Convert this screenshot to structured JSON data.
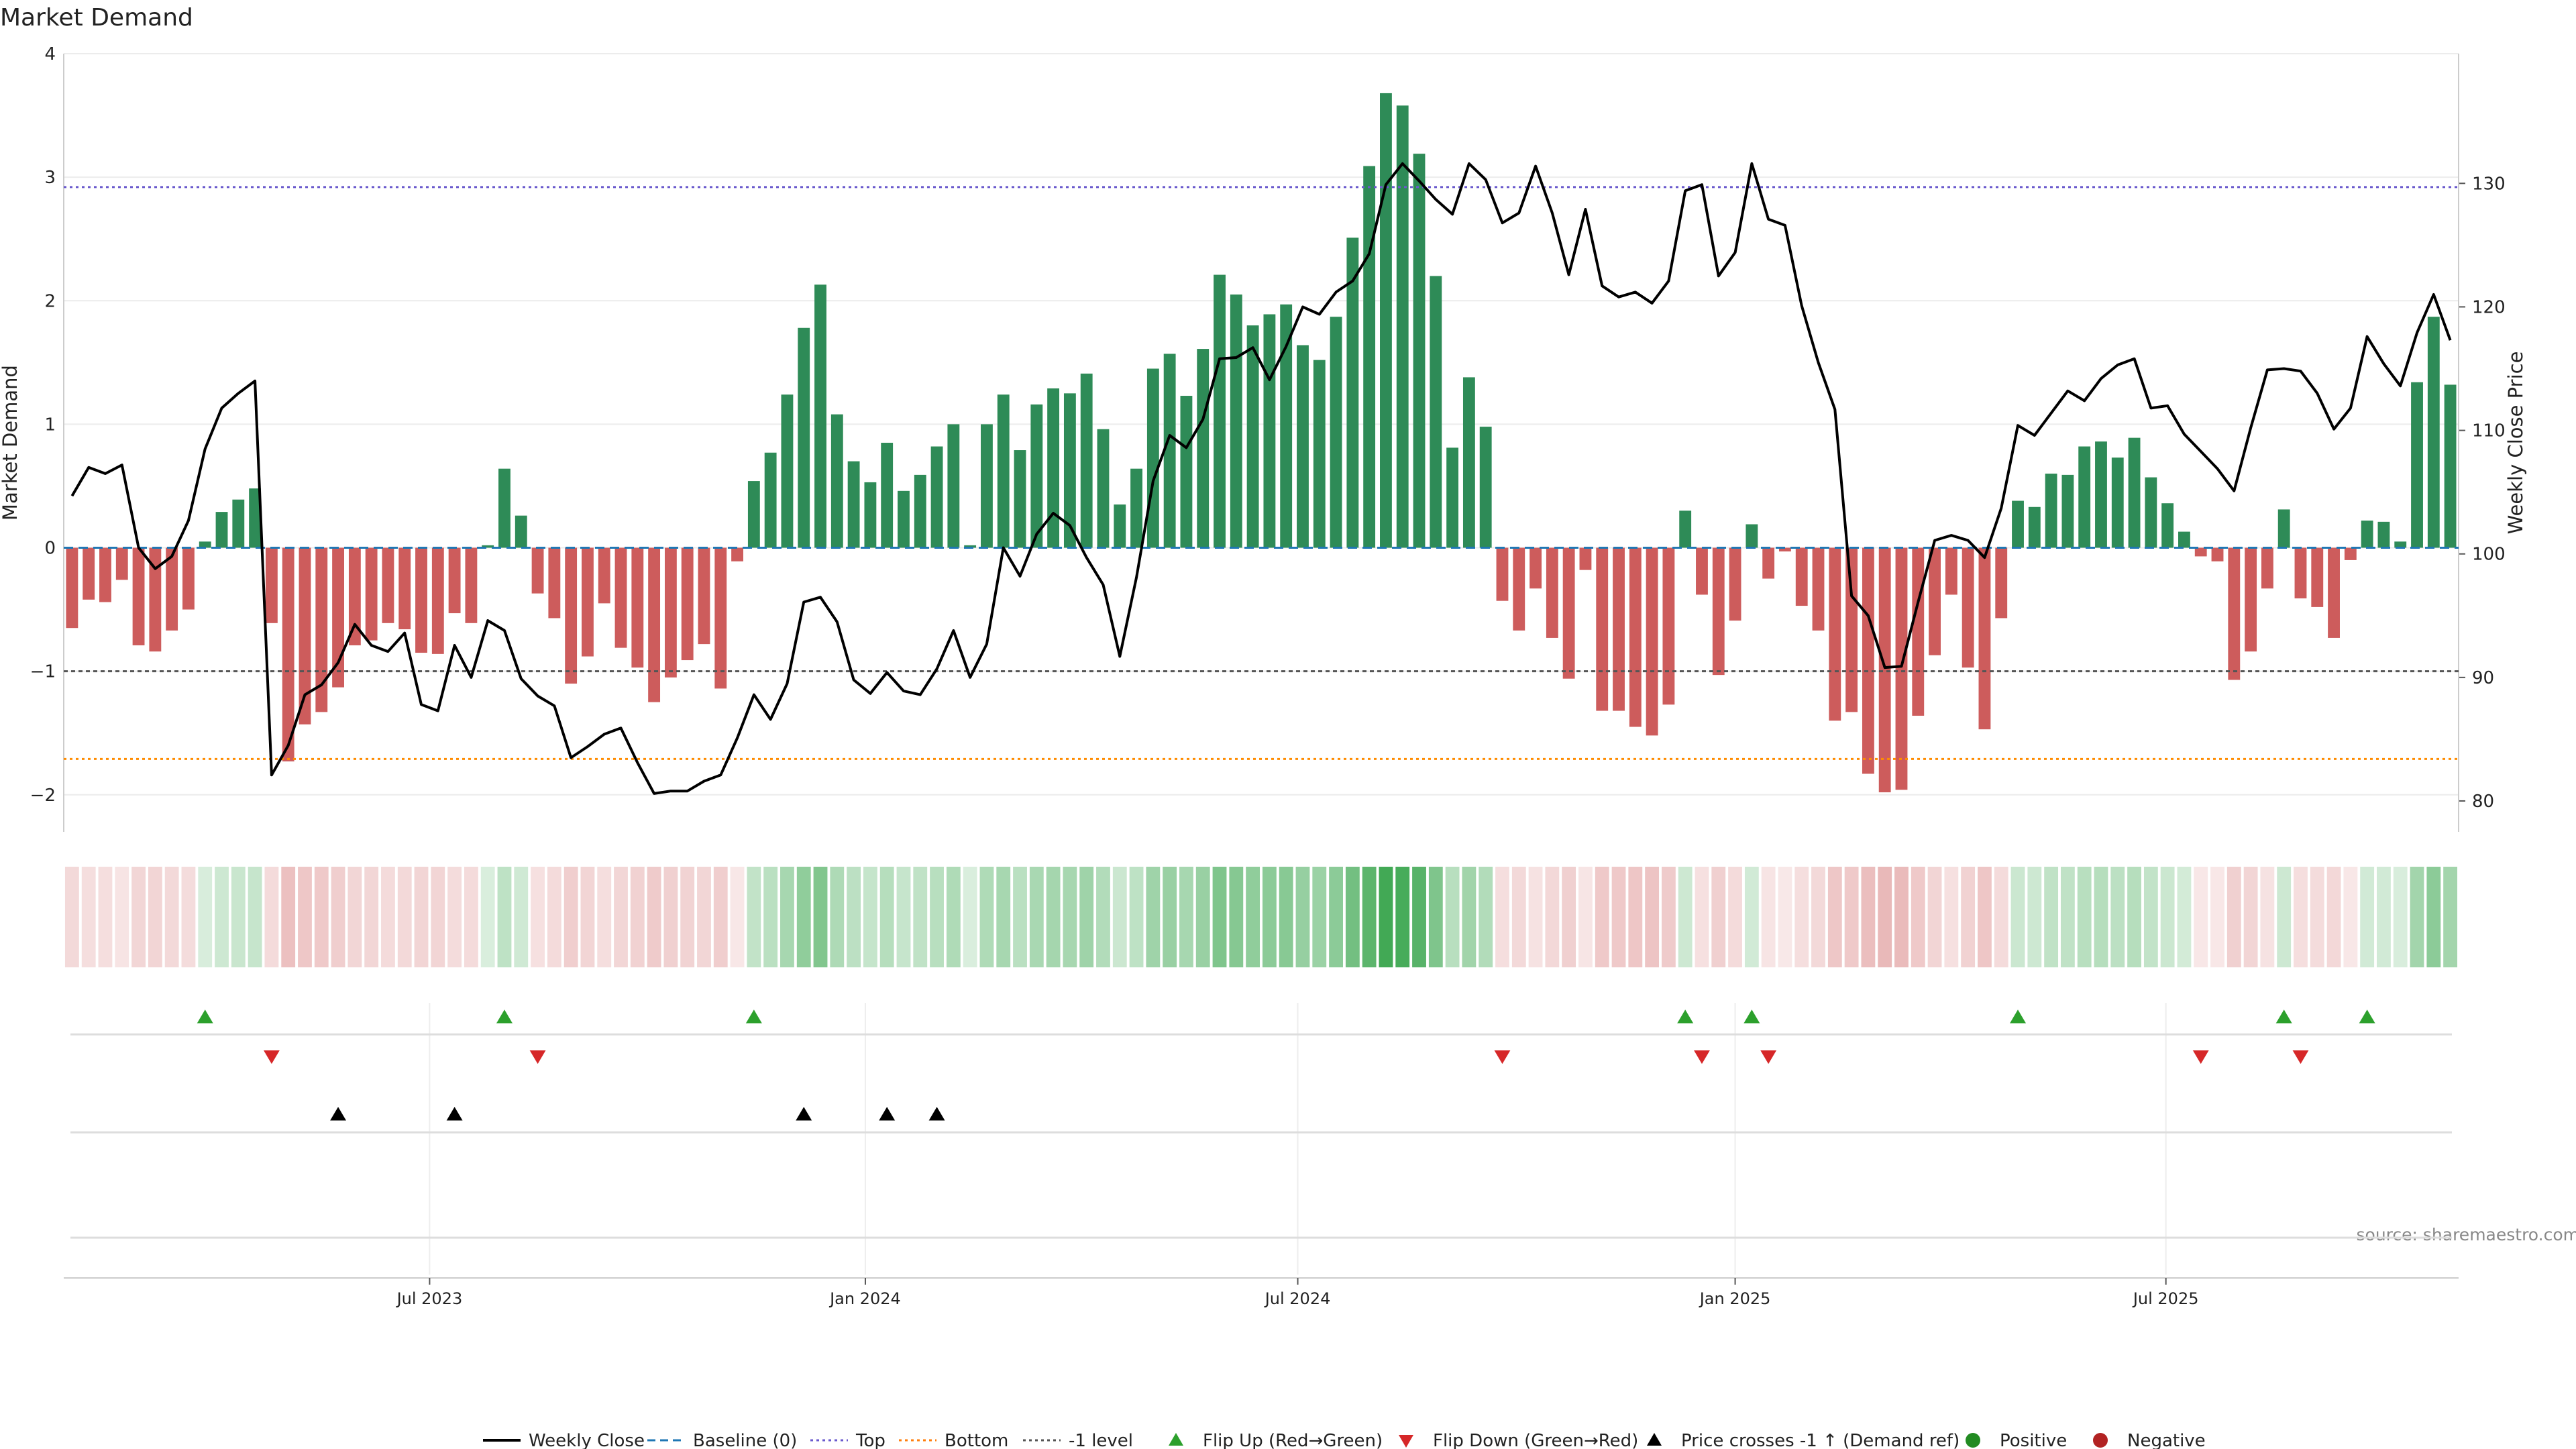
{
  "chart_data": {
    "type": "bar",
    "title": "Market Demand",
    "ylabel_left": "Market Demand",
    "ylabel_right": "Weekly Close Price",
    "source": "source: sharemaestro.com",
    "ylim_left": [
      -2.3,
      4.0
    ],
    "ylim_right": [
      77.5,
      140.5
    ],
    "yticks_left": [
      -2,
      -1,
      0,
      1,
      2,
      3,
      4
    ],
    "yticks_right": [
      80,
      90,
      100,
      110,
      120,
      130
    ],
    "x_tick_labels": [
      {
        "label": "Jul 2023",
        "week": 21.5
      },
      {
        "label": "Jan 2024",
        "week": 47.7
      },
      {
        "label": "Jul 2024",
        "week": 73.7
      },
      {
        "label": "Jan 2025",
        "week": 100
      },
      {
        "label": "Jul 2025",
        "week": 125.9
      }
    ],
    "x_range": [
      -0.5,
      143.5
    ],
    "reference_lines": {
      "baseline": 0,
      "top": 2.92,
      "bottom": -1.71,
      "minus_one": -1
    },
    "market_demand": [
      -0.65,
      -0.42,
      -0.44,
      -0.26,
      -0.79,
      -0.84,
      -0.67,
      -0.5,
      0.05,
      0.29,
      0.39,
      0.48,
      -0.61,
      -1.73,
      -1.43,
      -1.33,
      -1.13,
      -0.79,
      -0.75,
      -0.61,
      -0.66,
      -0.85,
      -0.86,
      -0.53,
      -0.61,
      0.02,
      0.64,
      0.26,
      -0.37,
      -0.57,
      -1.1,
      -0.88,
      -0.45,
      -0.81,
      -0.97,
      -1.25,
      -1.05,
      -0.91,
      -0.78,
      -1.14,
      -0.11,
      0.54,
      0.77,
      1.24,
      1.78,
      2.13,
      1.08,
      0.7,
      0.53,
      0.85,
      0.46,
      0.59,
      0.82,
      1.0,
      0.02,
      1.0,
      1.24,
      0.79,
      1.16,
      1.29,
      1.25,
      1.41,
      0.96,
      0.35,
      0.64,
      1.45,
      1.57,
      1.23,
      1.61,
      2.21,
      2.05,
      1.8,
      1.89,
      1.97,
      1.64,
      1.52,
      1.87,
      2.51,
      3.09,
      3.68,
      3.58,
      3.19,
      2.2,
      0.81,
      1.38,
      0.98,
      -0.43,
      -0.67,
      -0.33,
      -0.73,
      -1.06,
      -0.18,
      -1.32,
      -1.32,
      -1.45,
      -1.52,
      -1.27,
      0.3,
      -0.38,
      -1.03,
      -0.59,
      0.19,
      -0.25,
      -0.03,
      -0.47,
      -0.67,
      -1.4,
      -1.33,
      -1.83,
      -1.98,
      -1.96,
      -1.36,
      -0.87,
      -0.38,
      -0.97,
      -1.47,
      -0.57,
      0.38,
      0.33,
      0.6,
      0.59,
      0.82,
      0.86,
      0.73,
      0.89,
      0.57,
      0.36,
      0.13,
      -0.07,
      -0.11,
      -1.07,
      -0.84,
      -0.33,
      0.31,
      -0.41,
      -0.48,
      -0.73,
      -0.1,
      0.22,
      0.21,
      0.05,
      1.34,
      1.87,
      1.32
    ],
    "weekly_close": [
      104.7,
      107.0,
      106.5,
      107.2,
      100.5,
      98.8,
      99.8,
      102.7,
      108.5,
      111.8,
      113.0,
      114.0,
      82.1,
      84.5,
      88.6,
      89.4,
      91.2,
      94.3,
      92.6,
      92.1,
      93.6,
      87.8,
      87.3,
      92.6,
      90.0,
      94.6,
      93.8,
      89.9,
      88.5,
      87.7,
      83.5,
      84.4,
      85.4,
      85.9,
      83.1,
      80.6,
      80.8,
      80.8,
      81.6,
      82.1,
      85.1,
      88.6,
      86.6,
      89.5,
      96.1,
      96.5,
      94.5,
      89.8,
      88.7,
      90.4,
      88.9,
      88.6,
      90.7,
      93.8,
      90.0,
      92.7,
      100.5,
      98.2,
      101.6,
      103.3,
      102.3,
      99.7,
      97.5,
      91.7,
      98.1,
      105.9,
      109.6,
      108.6,
      110.9,
      115.8,
      115.9,
      116.7,
      114.1,
      116.8,
      120.0,
      119.4,
      121.2,
      122.1,
      124.3,
      129.9,
      131.6,
      130.2,
      128.7,
      127.5,
      131.6,
      130.3,
      126.8,
      127.6,
      131.4,
      127.6,
      122.6,
      127.9,
      121.7,
      120.8,
      121.2,
      120.3,
      122.1,
      129.4,
      129.9,
      122.5,
      124.4,
      131.6,
      127.1,
      126.6,
      120.1,
      115.5,
      111.7,
      96.6,
      95.0,
      90.8,
      90.9,
      96.1,
      101.1,
      101.5,
      101.1,
      99.7,
      103.7,
      110.4,
      109.6,
      111.4,
      113.2,
      112.4,
      114.2,
      115.3,
      115.8,
      111.8,
      112.0,
      109.7,
      108.3,
      106.9,
      105.1,
      110.2,
      114.9,
      115.0,
      114.8,
      113.0,
      110.1,
      111.8,
      117.6,
      115.4,
      113.6,
      117.9,
      121.0,
      117.3
    ],
    "flip_up_weeks": [
      8,
      26,
      41,
      97,
      101,
      117,
      133,
      138
    ],
    "flip_down_weeks": [
      12,
      28,
      86,
      98,
      102,
      128,
      134
    ],
    "price_cross_weeks": [
      16,
      23,
      44,
      49,
      52
    ],
    "legend": [
      {
        "label": "Weekly Close",
        "style": "line",
        "color": "#000000"
      },
      {
        "label": "Baseline (0)",
        "style": "dashed",
        "color": "#1f77b4"
      },
      {
        "label": "Top",
        "style": "dotted",
        "color": "#6a5acd"
      },
      {
        "label": "Bottom",
        "style": "dotted",
        "color": "#ff7f0e"
      },
      {
        "label": "-1 level",
        "style": "dotted",
        "color": "#555555"
      },
      {
        "label": "Flip Up (Red→Green)",
        "style": "tri-up",
        "color": "#2ca02c"
      },
      {
        "label": "Flip Down (Green→Red)",
        "style": "tri-down",
        "color": "#d62728"
      },
      {
        "label": "Price crosses -1 ↑ (Demand ref)",
        "style": "tri-up",
        "color": "#000000"
      },
      {
        "label": "Positive",
        "style": "dot",
        "color": "#228b22"
      },
      {
        "label": "Negative",
        "style": "dot",
        "color": "#b22222"
      }
    ],
    "colors": {
      "positive_bar": "#2e8b57",
      "negative_bar": "#cd5c5c",
      "price_line": "#000000",
      "top_line": "#6a5acd",
      "bottom_line": "#ff8c00",
      "minus_one_line": "#555555",
      "baseline": "#1f77b4"
    }
  }
}
